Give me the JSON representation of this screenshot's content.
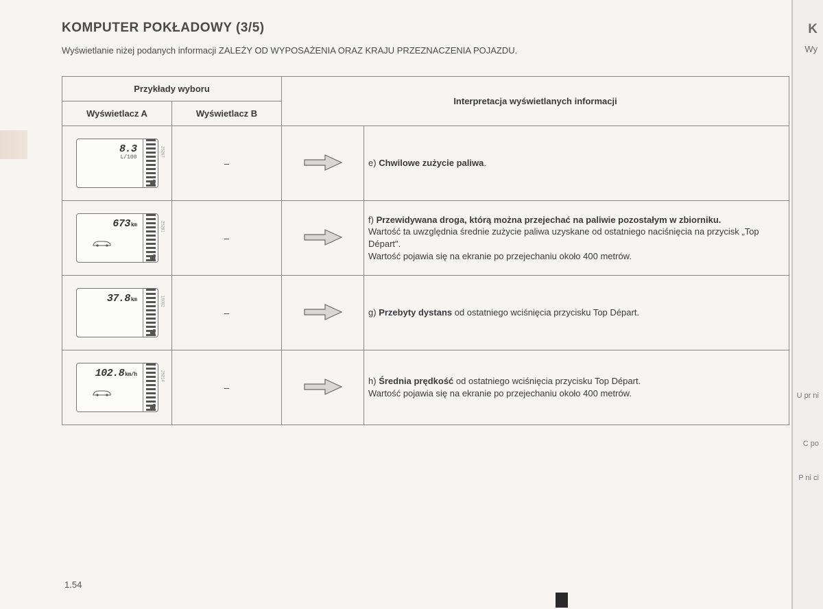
{
  "title": "KOMPUTER POKŁADOWY (3/5)",
  "subtitle": "Wyświetlanie niżej podanych informacji ZALEŻY OD WYPOSAŻENIA ORAZ KRAJU PRZEZNACZENIA POJAZDU.",
  "table": {
    "header_examples": "Przykłady wyboru",
    "header_dispA": "Wyświetlacz A",
    "header_dispB": "Wyświetlacz B",
    "header_interp": "Interpretacja wyświetlanych informacji",
    "dash": "–"
  },
  "rows": [
    {
      "value": "8.3",
      "unit": "L/100",
      "sidecode": "25267",
      "letter": "e)",
      "lead": "Chwilowe zużycie paliwa",
      "tail": ".",
      "body": ""
    },
    {
      "value": "673",
      "unit": "km",
      "unit_inline": true,
      "sidecode": "25281",
      "car": true,
      "letter": "f)",
      "lead": "Przewidywana droga, którą można przejechać na paliwie pozostałym w zbiorniku.",
      "tail": "",
      "body": "Wartość ta uwzględnia średnie zużycie paliwa uzyskane od ostatniego naciśnięcia na przycisk „Top Départ\".\nWartość pojawia się na ekranie po przejechaniu około 400 metrów."
    },
    {
      "value": "37.8",
      "unit": "km",
      "unit_inline": true,
      "sidecode": "16082",
      "letter": "g)",
      "lead": "Przebyty dystans",
      "tail": " od ostatniego wciśnięcia przycisku Top Départ.",
      "body": ""
    },
    {
      "value": "102.8",
      "unit": "km/h",
      "unit_inline": true,
      "sidecode": "25214",
      "car": true,
      "letter": "h)",
      "lead": "Średnia prędkość",
      "tail": " od ostatniego wciśnięcia przycisku Top Départ.",
      "body": "Wartość pojawia się na ekranie po przejechaniu około 400 metrów."
    }
  ],
  "page_number": "1.54",
  "edge": {
    "title": "K",
    "sub": "Wy",
    "frag1": "U\npr\nni",
    "frag2": "C\npo",
    "frag3": "P\nni\nci"
  },
  "colors": {
    "border": "#888888",
    "text": "#3a3a3a",
    "bg": "#f6f5f2",
    "arrow_fill": "#d9d7d3",
    "arrow_stroke": "#6a6a6a"
  }
}
